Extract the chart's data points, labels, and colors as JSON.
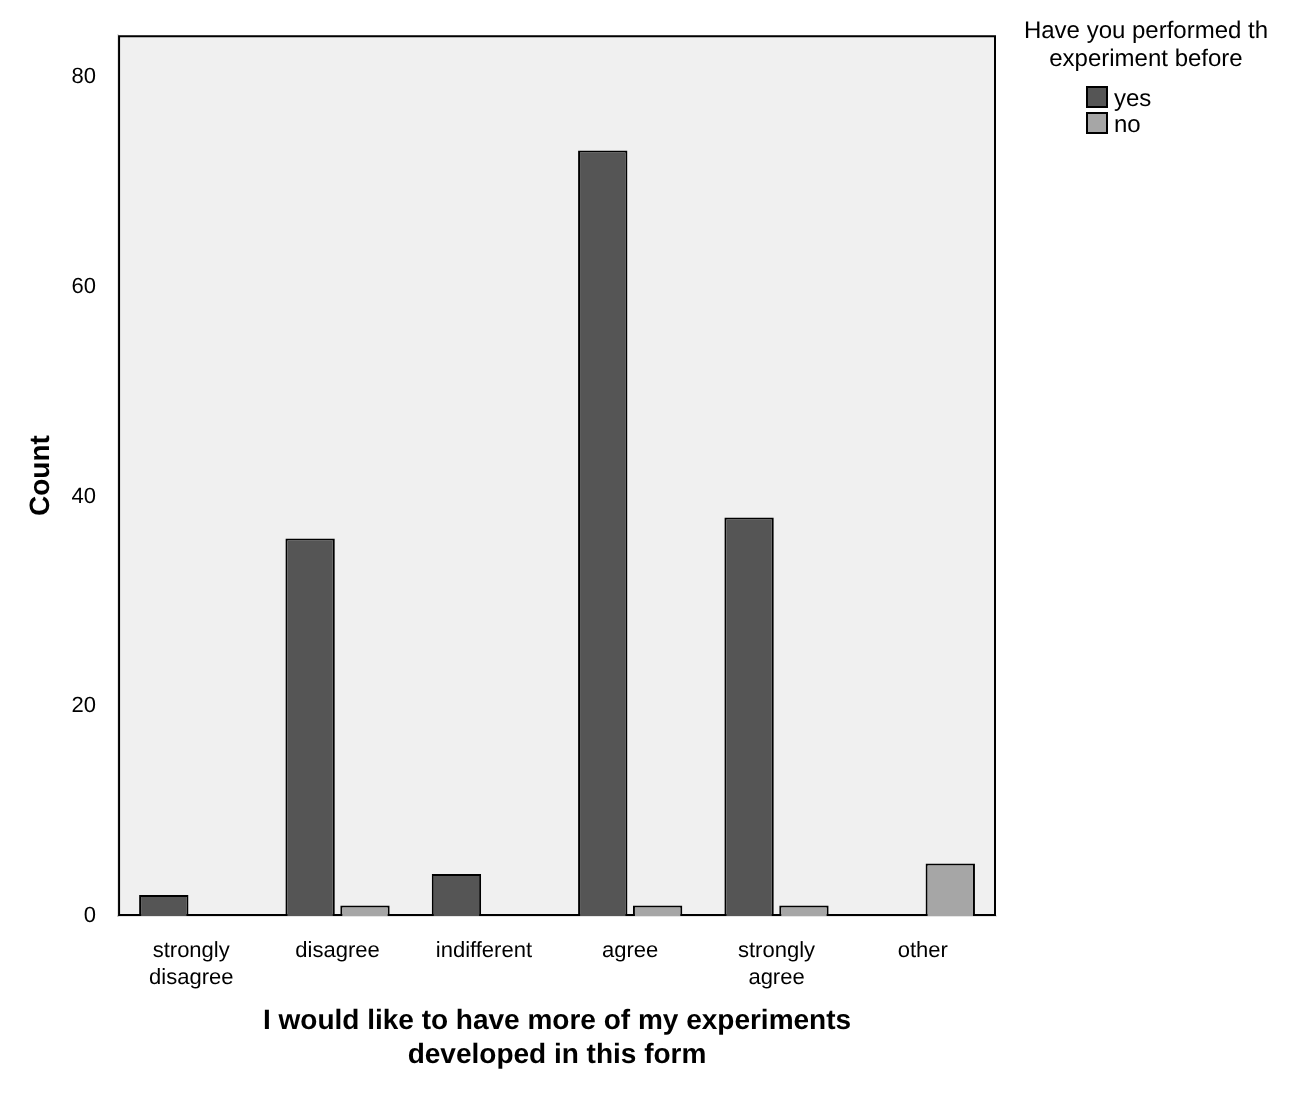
{
  "chart_data": {
    "type": "bar",
    "xlabel": "I would like to have more of my experiments developed in this form",
    "ylabel": "Count",
    "legend_title": "Have you performed th experiment before",
    "categories": [
      "strongly disagree",
      "disagree",
      "indifferent",
      "agree",
      "strongly agree",
      "other"
    ],
    "series": [
      {
        "name": "yes",
        "color": "#555555",
        "values": [
          2,
          36,
          4,
          73,
          38,
          null
        ]
      },
      {
        "name": "no",
        "color": "#a6a6a6",
        "values": [
          null,
          1,
          null,
          1,
          1,
          5
        ]
      }
    ],
    "ylim": [
      0,
      84
    ],
    "yticks": [
      0,
      20,
      40,
      60,
      80
    ],
    "grid": false,
    "legend": "top right"
  }
}
